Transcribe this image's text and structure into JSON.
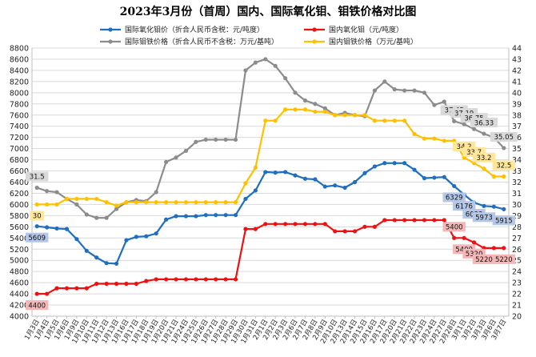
{
  "chart_data": {
    "type": "line",
    "title": "2023年3月份（首周）国内、国际氧化钼、钼铁价格对比图",
    "categories": [
      "1月3日",
      "1月4日",
      "1月5日",
      "1月6日",
      "1月9日",
      "1月10日",
      "1月11日",
      "1月12日",
      "1月13日",
      "1月16日",
      "1月17日",
      "1月18日",
      "1月19日",
      "1月20日",
      "1月21日",
      "1月24日",
      "1月25日",
      "1月26日",
      "1月27日",
      "1月28日",
      "1月29日",
      "1月30日",
      "1月31日",
      "2月1日",
      "2月2日",
      "2月3日",
      "2月6日",
      "2月7日",
      "2月8日",
      "2月9日",
      "2月10日",
      "2月13日",
      "2月14日",
      "2月15日",
      "2月16日",
      "2月17日",
      "2月20日",
      "2月21日",
      "2月22日",
      "2月23日",
      "2月24日",
      "2月27日",
      "2月28日",
      "3月1日",
      "3月2日",
      "3月3日",
      "3月6日",
      "3月7日"
    ],
    "y_left": {
      "min": 4000,
      "max": 8800,
      "step": 200
    },
    "y_right": {
      "min": 20,
      "max": 44,
      "step": 1
    },
    "grid": true,
    "legend_position": "top",
    "series": [
      {
        "name": "国际氧化钼价（折合人民币含税：元/吨度）",
        "axis": "left",
        "color": "#1f6fc0",
        "values": [
          5609,
          5590,
          5570,
          5560,
          5380,
          5170,
          5050,
          4950,
          4940,
          5360,
          5420,
          5430,
          5480,
          5730,
          5790,
          5790,
          5790,
          5810,
          5810,
          5810,
          5810,
          6100,
          6250,
          6580,
          6570,
          6580,
          6520,
          6460,
          6450,
          6320,
          6340,
          6300,
          6400,
          6560,
          6680,
          6740,
          6740,
          6740,
          6620,
          6470,
          6480,
          6490,
          6329,
          6176,
          6033,
          5973,
          5960,
          5915
        ]
      },
      {
        "name": "国内氧化钼（元/吨度）",
        "axis": "left",
        "color": "#ee1111",
        "values": [
          4400,
          4400,
          4500,
          4500,
          4500,
          4500,
          4580,
          4580,
          4580,
          4580,
          4580,
          4630,
          4660,
          4660,
          4660,
          4660,
          4660,
          4660,
          4660,
          4660,
          4660,
          5560,
          5560,
          5650,
          5650,
          5650,
          5650,
          5650,
          5650,
          5650,
          5520,
          5520,
          5520,
          5600,
          5600,
          5720,
          5720,
          5720,
          5720,
          5720,
          5720,
          5720,
          5400,
          5400,
          5320,
          5220,
          5220,
          5220
        ]
      },
      {
        "name": "国际钼铁价格（折合人民币不含税：万元/基吨）",
        "axis": "right",
        "color": "#8c8c8c",
        "values": [
          31.5,
          31.2,
          31.1,
          30.5,
          30.0,
          29.1,
          28.8,
          28.8,
          29.6,
          30.2,
          30.4,
          30.3,
          31.1,
          33.8,
          34.2,
          34.8,
          35.6,
          35.8,
          35.8,
          35.8,
          35.8,
          42.0,
          42.7,
          43.0,
          42.4,
          41.3,
          40.0,
          39.3,
          39.0,
          38.6,
          38.0,
          38.2,
          38.0,
          37.9,
          40.2,
          41.0,
          40.3,
          40.2,
          40.2,
          40.0,
          38.9,
          39.2,
          37.45,
          37.19,
          36.75,
          36.33,
          36.0,
          35.05
        ]
      },
      {
        "name": "国内钼铁价格（万元/基吨）",
        "axis": "right",
        "color": "#ffc000",
        "values": [
          30.0,
          30.0,
          30.0,
          30.5,
          30.5,
          30.5,
          30.5,
          30.2,
          29.9,
          30.2,
          30.2,
          30.2,
          30.2,
          30.2,
          30.2,
          30.2,
          30.2,
          30.2,
          30.2,
          30.2,
          30.2,
          31.9,
          33.3,
          37.5,
          37.5,
          38.5,
          38.5,
          38.5,
          38.3,
          38.3,
          38.0,
          38.0,
          38.0,
          38.0,
          37.5,
          37.5,
          37.5,
          37.5,
          36.3,
          35.9,
          35.9,
          35.7,
          35.7,
          34.2,
          33.7,
          33.2,
          32.5,
          32.5
        ]
      }
    ],
    "data_labels": [
      {
        "series": 0,
        "index": 0,
        "text": "5609",
        "pos": "below"
      },
      {
        "series": 0,
        "index": 42,
        "text": "6329",
        "pos": "below"
      },
      {
        "series": 0,
        "index": 43,
        "text": "6176",
        "pos": "below"
      },
      {
        "series": 0,
        "index": 44,
        "text": "6033",
        "pos": "below"
      },
      {
        "series": 0,
        "index": 45,
        "text": "5973",
        "pos": "below"
      },
      {
        "series": 0,
        "index": 47,
        "text": "5915",
        "pos": "below"
      },
      {
        "series": 1,
        "index": 0,
        "text": "4400",
        "pos": "below"
      },
      {
        "series": 1,
        "index": 42,
        "text": "5400",
        "pos": "above"
      },
      {
        "series": 1,
        "index": 43,
        "text": "5400",
        "pos": "below"
      },
      {
        "series": 1,
        "index": 44,
        "text": "5320",
        "pos": "below"
      },
      {
        "series": 1,
        "index": 45,
        "text": "5220",
        "pos": "below"
      },
      {
        "series": 1,
        "index": 47,
        "text": "5220",
        "pos": "below"
      },
      {
        "series": 2,
        "index": 0,
        "text": "31.5",
        "pos": "above"
      },
      {
        "series": 2,
        "index": 42,
        "text": "37.45",
        "pos": "above"
      },
      {
        "series": 2,
        "index": 43,
        "text": "37.19",
        "pos": "above"
      },
      {
        "series": 2,
        "index": 44,
        "text": "36.75",
        "pos": "above"
      },
      {
        "series": 2,
        "index": 45,
        "text": "36.33",
        "pos": "above"
      },
      {
        "series": 2,
        "index": 47,
        "text": "35.05",
        "pos": "above"
      },
      {
        "series": 3,
        "index": 0,
        "text": "30",
        "pos": "below"
      },
      {
        "series": 3,
        "index": 43,
        "text": "34.2",
        "pos": "above"
      },
      {
        "series": 3,
        "index": 44,
        "text": "33.7",
        "pos": "above"
      },
      {
        "series": 3,
        "index": 45,
        "text": "33.2",
        "pos": "above"
      },
      {
        "series": 3,
        "index": 47,
        "text": "32.5",
        "pos": "above"
      }
    ]
  }
}
